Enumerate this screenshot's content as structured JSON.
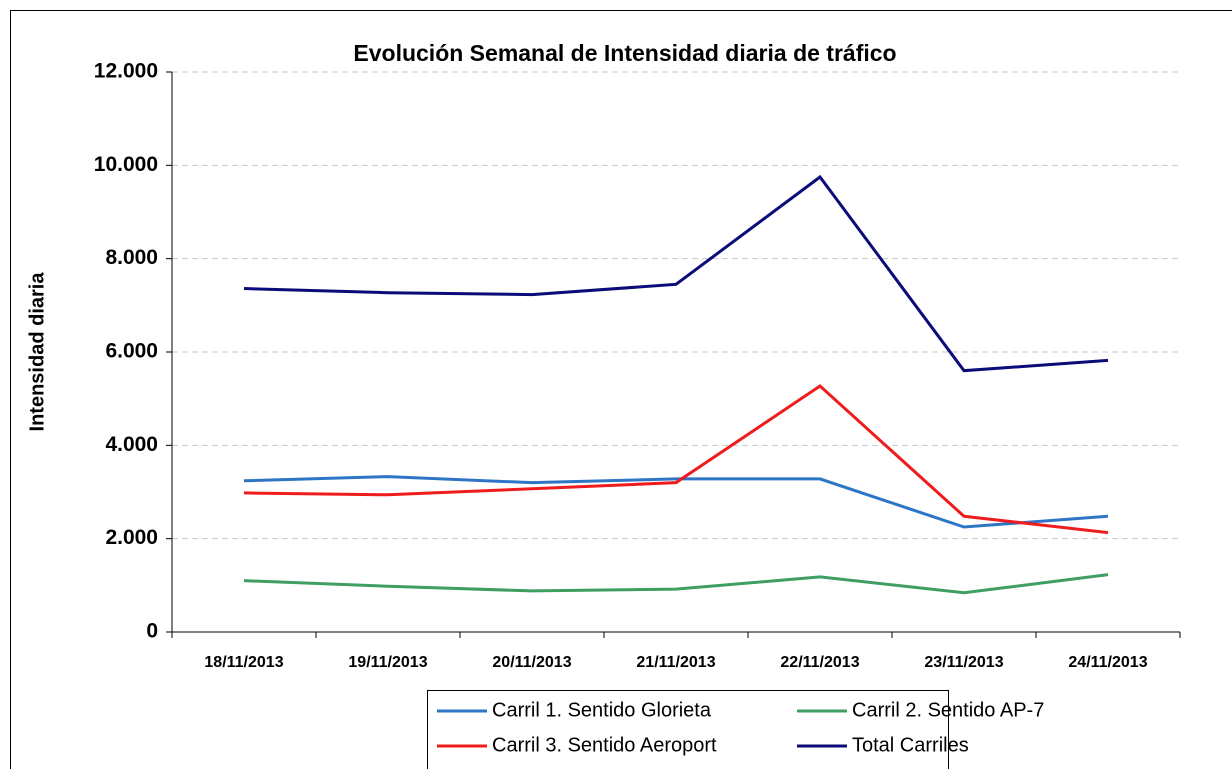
{
  "chart_data": {
    "type": "line",
    "title": "Evolución Semanal de Intensidad diaria de tráfico",
    "y_label": "Intensidad diaria",
    "categories": [
      "18/11/2013",
      "19/11/2013",
      "20/11/2013",
      "21/11/2013",
      "22/11/2013",
      "23/11/2013",
      "24/11/2013"
    ],
    "series": [
      {
        "name": "Carril 1. Sentido Glorieta",
        "color": "#2e75c6",
        "values": [
          3240,
          3330,
          3200,
          3280,
          3280,
          2250,
          2480
        ]
      },
      {
        "name": "Carril 2. Sentido AP-7",
        "color": "#3f9e62",
        "values": [
          1100,
          980,
          880,
          920,
          1180,
          840,
          1230
        ]
      },
      {
        "name": "Carril 3. Sentido Aeroport",
        "color": "#ee1c1c",
        "values": [
          2980,
          2940,
          3070,
          3200,
          5270,
          2480,
          2130
        ]
      },
      {
        "name": "Total Carriles",
        "color": "#0b0b7a",
        "values": [
          7360,
          7270,
          7230,
          7450,
          9750,
          5600,
          5820
        ]
      }
    ],
    "ylim": [
      0,
      12000
    ],
    "yticks": [
      0,
      {
        "value": 2000,
        "label": "2.000"
      },
      {
        "value": 4000,
        "label": "4.000"
      },
      {
        "value": 6000,
        "label": "6.000"
      },
      {
        "value": 8000,
        "label": "8.000"
      },
      {
        "value": 10000,
        "label": "10.000"
      },
      {
        "value": 12000,
        "label": "12.000"
      }
    ],
    "grid": true,
    "legend": "bottom"
  }
}
